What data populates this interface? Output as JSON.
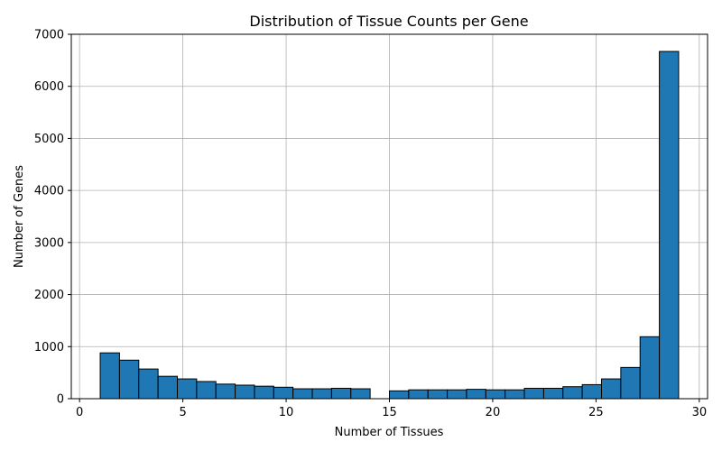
{
  "chart_data": {
    "type": "bar",
    "title": "Distribution of Tissue Counts per Gene",
    "xlabel": "Number of Tissues",
    "ylabel": "Number of Genes",
    "xlim": [
      -0.4,
      30.4
    ],
    "ylim": [
      0,
      7000
    ],
    "xticks": [
      0,
      5,
      10,
      15,
      20,
      25,
      30
    ],
    "yticks": [
      0,
      1000,
      2000,
      3000,
      4000,
      5000,
      6000,
      7000
    ],
    "grid": true,
    "bar_color": "#1f77b4",
    "edge_color": "#000000",
    "bins": [
      {
        "x0": 1.0,
        "x1": 1.933,
        "value": 880
      },
      {
        "x0": 1.933,
        "x1": 2.867,
        "value": 740
      },
      {
        "x0": 2.867,
        "x1": 3.8,
        "value": 570
      },
      {
        "x0": 3.8,
        "x1": 4.733,
        "value": 430
      },
      {
        "x0": 4.733,
        "x1": 5.667,
        "value": 380
      },
      {
        "x0": 5.667,
        "x1": 6.6,
        "value": 330
      },
      {
        "x0": 6.6,
        "x1": 7.533,
        "value": 280
      },
      {
        "x0": 7.533,
        "x1": 8.467,
        "value": 260
      },
      {
        "x0": 8.467,
        "x1": 9.4,
        "value": 240
      },
      {
        "x0": 9.4,
        "x1": 10.333,
        "value": 220
      },
      {
        "x0": 10.333,
        "x1": 11.267,
        "value": 190
      },
      {
        "x0": 11.267,
        "x1": 12.2,
        "value": 190
      },
      {
        "x0": 12.2,
        "x1": 13.133,
        "value": 200
      },
      {
        "x0": 13.133,
        "x1": 14.067,
        "value": 190
      },
      {
        "x0": 14.067,
        "x1": 15.0,
        "value": 0
      },
      {
        "x0": 15.0,
        "x1": 15.933,
        "value": 150
      },
      {
        "x0": 15.933,
        "x1": 16.867,
        "value": 170
      },
      {
        "x0": 16.867,
        "x1": 17.8,
        "value": 170
      },
      {
        "x0": 17.8,
        "x1": 18.733,
        "value": 170
      },
      {
        "x0": 18.733,
        "x1": 19.667,
        "value": 180
      },
      {
        "x0": 19.667,
        "x1": 20.6,
        "value": 170
      },
      {
        "x0": 20.6,
        "x1": 21.533,
        "value": 170
      },
      {
        "x0": 21.533,
        "x1": 22.467,
        "value": 200
      },
      {
        "x0": 22.467,
        "x1": 23.4,
        "value": 200
      },
      {
        "x0": 23.4,
        "x1": 24.333,
        "value": 230
      },
      {
        "x0": 24.333,
        "x1": 25.267,
        "value": 270
      },
      {
        "x0": 25.267,
        "x1": 26.2,
        "value": 380
      },
      {
        "x0": 26.2,
        "x1": 27.133,
        "value": 600
      },
      {
        "x0": 27.133,
        "x1": 28.067,
        "value": 1190
      },
      {
        "x0": 28.067,
        "x1": 29.0,
        "value": 6670
      }
    ]
  }
}
